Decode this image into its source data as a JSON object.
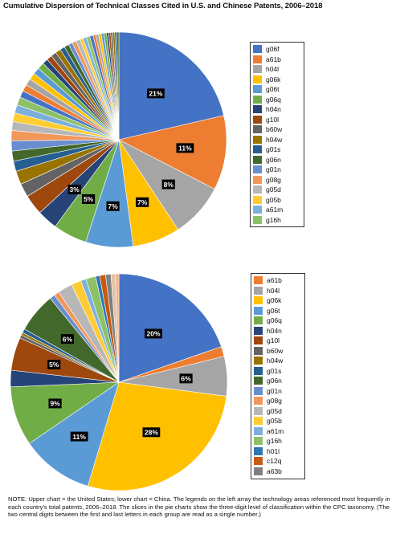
{
  "title": "Cumulative Dispersion of Technical Classes Cited in U.S. and Chinese Patents, 2006–2018",
  "note": "NOTE: Upper chart = the United States; lower chart = China. The legends on the left array the technology areas referenced most frequently in each country's total patents, 2006–2018. The slices in the pie charts show the three-digit level of classification within the CPC taxonomy. (The two central digits between the first and last letters in each group are read as a single number.)",
  "chart_data": [
    {
      "type": "pie",
      "title": "",
      "legend_position": "right",
      "slices": [
        {
          "label": "g06f",
          "value": 21,
          "value_label": "21%",
          "color": "#4472c4"
        },
        {
          "label": "a61b",
          "value": 11,
          "value_label": "11%",
          "color": "#ed7d31"
        },
        {
          "label": "h04l",
          "value": 8,
          "value_label": "8%",
          "color": "#a5a5a5"
        },
        {
          "label": "g06k",
          "value": 7,
          "value_label": "7%",
          "color": "#ffc000"
        },
        {
          "label": "g06t",
          "value": 7,
          "value_label": "7%",
          "color": "#5b9bd5"
        },
        {
          "label": "g06q",
          "value": 5,
          "value_label": "5%",
          "color": "#70ad47"
        },
        {
          "label": "h04n",
          "value": 3,
          "value_label": "3%",
          "color": "#264478"
        },
        {
          "label": "g10l",
          "value": 3,
          "color": "#9e480e"
        },
        {
          "label": "b60w",
          "value": 2,
          "color": "#636363"
        },
        {
          "label": "h04w",
          "value": 2,
          "color": "#997300"
        },
        {
          "label": "g01s",
          "value": 1.5,
          "color": "#255e91"
        },
        {
          "label": "g06n",
          "value": 1.5,
          "color": "#43682b"
        },
        {
          "label": "g01n",
          "value": 1.5,
          "color": "#698ed0"
        },
        {
          "label": "g08g",
          "value": 1.5,
          "color": "#f1975a"
        },
        {
          "label": "g05d",
          "value": 1.3,
          "color": "#b7b7b7"
        },
        {
          "label": "g05b",
          "value": 1.3,
          "color": "#ffcd33"
        },
        {
          "label": "a61m",
          "value": 1.2,
          "color": "#7cafdd"
        },
        {
          "label": "g16h",
          "value": 1.2,
          "color": "#8cc168"
        },
        {
          "label": "",
          "value": 1,
          "color": "#4472c4"
        },
        {
          "label": "",
          "value": 1,
          "color": "#ed7d31"
        },
        {
          "label": "",
          "value": 1,
          "color": "#a5a5a5"
        },
        {
          "label": "",
          "value": 1,
          "color": "#ffc000"
        },
        {
          "label": "",
          "value": 1,
          "color": "#5b9bd5"
        },
        {
          "label": "",
          "value": 1,
          "color": "#70ad47"
        },
        {
          "label": "",
          "value": 0.8,
          "color": "#264478"
        },
        {
          "label": "",
          "value": 0.8,
          "color": "#9e480e"
        },
        {
          "label": "",
          "value": 0.8,
          "color": "#636363"
        },
        {
          "label": "",
          "value": 0.8,
          "color": "#997300"
        },
        {
          "label": "",
          "value": 0.7,
          "color": "#255e91"
        },
        {
          "label": "",
          "value": 0.7,
          "color": "#43682b"
        },
        {
          "label": "",
          "value": 0.6,
          "color": "#698ed0"
        },
        {
          "label": "",
          "value": 0.6,
          "color": "#f1975a"
        },
        {
          "label": "",
          "value": 0.6,
          "color": "#b7b7b7"
        },
        {
          "label": "",
          "value": 0.5,
          "color": "#ffcd33"
        },
        {
          "label": "",
          "value": 0.5,
          "color": "#7cafdd"
        },
        {
          "label": "",
          "value": 0.5,
          "color": "#8cc168"
        },
        {
          "label": "",
          "value": 0.5,
          "color": "#4472c4"
        },
        {
          "label": "",
          "value": 0.4,
          "color": "#ed7d31"
        },
        {
          "label": "",
          "value": 0.4,
          "color": "#a5a5a5"
        },
        {
          "label": "",
          "value": 0.4,
          "color": "#ffc000"
        },
        {
          "label": "",
          "value": 0.4,
          "color": "#5b9bd5"
        },
        {
          "label": "",
          "value": 0.4,
          "color": "#70ad47"
        },
        {
          "label": "",
          "value": 0.3,
          "color": "#264478"
        },
        {
          "label": "",
          "value": 0.3,
          "color": "#9e480e"
        },
        {
          "label": "",
          "value": 0.3,
          "color": "#636363"
        },
        {
          "label": "",
          "value": 0.3,
          "color": "#997300"
        },
        {
          "label": "",
          "value": 0.3,
          "color": "#255e91"
        },
        {
          "label": "",
          "value": 0.3,
          "color": "#43682b"
        }
      ]
    },
    {
      "type": "pie",
      "title": "",
      "legend_position": "right",
      "slices": [
        {
          "label": "",
          "value": 20,
          "value_label": "20%",
          "color": "#4472c4"
        },
        {
          "label": "a61b",
          "value": 1.5,
          "color": "#ed7d31"
        },
        {
          "label": "h04l",
          "value": 6,
          "value_label": "6%",
          "color": "#a5a5a5"
        },
        {
          "label": "g06k",
          "value": 28,
          "value_label": "28%",
          "color": "#ffc000"
        },
        {
          "label": "g06t",
          "value": 11,
          "value_label": "11%",
          "color": "#5b9bd5"
        },
        {
          "label": "g06q",
          "value": 9,
          "value_label": "9%",
          "color": "#70ad47"
        },
        {
          "label": "h04n",
          "value": 2.5,
          "color": "#264478"
        },
        {
          "label": "g10l",
          "value": 5,
          "value_label": "5%",
          "color": "#9e480e"
        },
        {
          "label": "b60w",
          "value": 0.5,
          "color": "#636363"
        },
        {
          "label": "h04w",
          "value": 0.4,
          "color": "#997300"
        },
        {
          "label": "g01s",
          "value": 0.6,
          "color": "#255e91"
        },
        {
          "label": "g06n",
          "value": 6,
          "value_label": "6%",
          "color": "#43682b"
        },
        {
          "label": "g01n",
          "value": 0.8,
          "color": "#698ed0"
        },
        {
          "label": "g08g",
          "value": 0.8,
          "color": "#f1975a"
        },
        {
          "label": "g05d",
          "value": 2.2,
          "color": "#b7b7b7"
        },
        {
          "label": "g05b",
          "value": 1.5,
          "color": "#ffcd33"
        },
        {
          "label": "a61m",
          "value": 0.8,
          "color": "#7cafdd"
        },
        {
          "label": "g16h",
          "value": 1.5,
          "color": "#8cc168"
        },
        {
          "label": "h01l",
          "value": 0.6,
          "color": "#2e75b6"
        },
        {
          "label": "c12q",
          "value": 0.9,
          "color": "#c55a11"
        },
        {
          "label": "a63b",
          "value": 0.8,
          "color": "#7f7f7f"
        },
        {
          "label": "",
          "value": 0.7,
          "color": "#e2c4a6"
        },
        {
          "label": "",
          "value": 0.5,
          "color": "#f4b183"
        }
      ]
    }
  ],
  "legends": [
    {
      "items": [
        "g06f",
        "a61b",
        "h04l",
        "g06k",
        "g06t",
        "g06q",
        "h04n",
        "g10l",
        "b60w",
        "h04w",
        "g01s",
        "g06n",
        "g01n",
        "g08g",
        "g05d",
        "g05b",
        "a61m",
        "g16h"
      ],
      "colors": [
        "#4472c4",
        "#ed7d31",
        "#a5a5a5",
        "#ffc000",
        "#5b9bd5",
        "#70ad47",
        "#264478",
        "#9e480e",
        "#636363",
        "#997300",
        "#255e91",
        "#43682b",
        "#698ed0",
        "#f1975a",
        "#b7b7b7",
        "#ffcd33",
        "#7cafdd",
        "#8cc168"
      ]
    },
    {
      "items": [
        "a61b",
        "h04l",
        "g06k",
        "g06t",
        "g06q",
        "h04n",
        "g10l",
        "b60w",
        "h04w",
        "g01s",
        "g06n",
        "g01n",
        "g08g",
        "g05d",
        "g05b",
        "a61m",
        "g16h",
        "h01l",
        "c12q",
        "a63b"
      ],
      "colors": [
        "#ed7d31",
        "#a5a5a5",
        "#ffc000",
        "#5b9bd5",
        "#70ad47",
        "#264478",
        "#9e480e",
        "#636363",
        "#997300",
        "#255e91",
        "#43682b",
        "#698ed0",
        "#f1975a",
        "#b7b7b7",
        "#ffcd33",
        "#7cafdd",
        "#8cc168",
        "#2e75b6",
        "#c55a11",
        "#7f7f7f"
      ]
    }
  ]
}
